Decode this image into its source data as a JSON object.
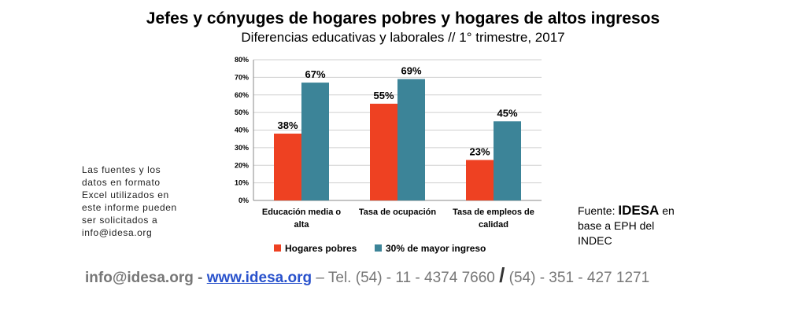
{
  "chart_data": {
    "type": "bar",
    "title": "Jefes y cónyuges de hogares pobres y hogares de altos ingresos",
    "subtitle": "Diferencias educativas y laborales // 1° trimestre, 2017",
    "categories": [
      [
        "Educación media o",
        "alta"
      ],
      [
        "Tasa de ocupación"
      ],
      [
        "Tasa de empleos de",
        "calidad"
      ]
    ],
    "series": [
      {
        "name": "Hogares pobres",
        "values": [
          38,
          55,
          23
        ],
        "labels": [
          "38%",
          "55%",
          "23%"
        ],
        "color": "#ee4122"
      },
      {
        "name": "30% de mayor ingreso",
        "values": [
          67,
          69,
          45
        ],
        "labels": [
          "67%",
          "69%",
          "45%"
        ],
        "color": "#3c8498"
      }
    ],
    "ylim": [
      0,
      80
    ],
    "yticks": [
      0,
      10,
      20,
      30,
      40,
      50,
      60,
      70,
      80
    ],
    "ytick_labels": [
      "0%",
      "10%",
      "20%",
      "30%",
      "40%",
      "50%",
      "60%",
      "70%",
      "80%"
    ],
    "grid": true,
    "legend": "bottom"
  },
  "note": [
    "Las fuentes y los",
    "datos en formato",
    "Excel utilizados en",
    "este informe pueden",
    "ser solicitados a",
    "info@idesa.org"
  ],
  "source": {
    "prefix": "Fuente: ",
    "brand": "IDESA",
    "suffix": " en",
    "line2": "base a EPH del",
    "line3": "INDEC"
  },
  "footer": {
    "email": "info@idesa.org",
    "sep1": " - ",
    "website": "www.idesa.org",
    "sep2": " – Tel. (54) - 11 - 4374 7660 ",
    "slash": "/",
    "phone2": " (54) - 351 - 427 1271"
  }
}
